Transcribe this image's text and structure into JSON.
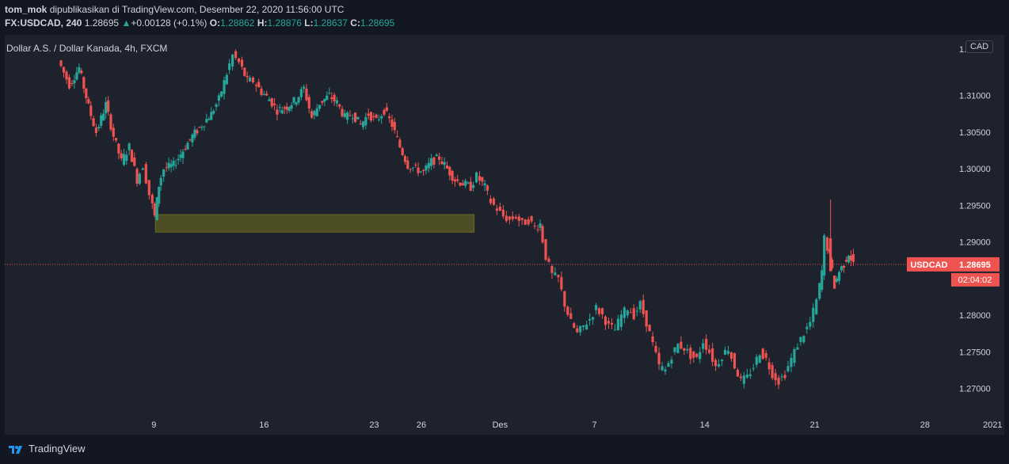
{
  "header": {
    "author": "tom_mok",
    "published_text": "dipublikasikan di TradingView.com, Desember 22, 2020 11:56:00 UTC",
    "symbol_interval": "FX:USDCAD, 240",
    "last_price": "1.28695",
    "change": "+0.00128 (+0.1%)",
    "o_label": "O:",
    "o_value": "1.28862",
    "h_label": "H:",
    "h_value": "1.28876",
    "l_label": "L:",
    "l_value": "1.28637",
    "c_label": "C:",
    "c_value": "1.28695"
  },
  "symbol_title": "Dollar A.S. / Dollar Kanada, 4h, FXCM",
  "currency_badge": "CAD",
  "price_axis": {
    "ticks": [
      "1.31000",
      "1.30500",
      "1.30000",
      "1.29500",
      "1.29000",
      "1.28000",
      "1.27500",
      "1.27000"
    ],
    "top_partial_label": "1.3"
  },
  "time_axis": {
    "ticks": [
      "9",
      "16",
      "23",
      "26",
      "Des",
      "7",
      "14",
      "21",
      "28",
      "2021"
    ]
  },
  "price_tags": {
    "symbol": "USDCAD",
    "last": "1.28695",
    "countdown": "02:04:02"
  },
  "footer": {
    "brand": "TradingView"
  },
  "colors": {
    "up": "#26a69a",
    "down": "#ef5350",
    "zone": "#4e4e24",
    "background": "#1e222d"
  },
  "chart_data": {
    "type": "candlestick",
    "symbol": "USDCAD",
    "interval": "4h",
    "ylim": [
      1.2666,
      1.3183
    ],
    "last_price": 1.28695,
    "support_zone": {
      "low": 1.29135,
      "high": 1.29375,
      "from_day": 9.1,
      "to_day": 29.35
    },
    "path_points": [
      [
        3.1,
        1.3148
      ],
      [
        3.8,
        1.3115
      ],
      [
        4.4,
        1.3138
      ],
      [
        5.0,
        1.3085
      ],
      [
        5.5,
        1.305
      ],
      [
        6.1,
        1.3088
      ],
      [
        6.6,
        1.3045
      ],
      [
        7.1,
        1.301
      ],
      [
        7.6,
        1.303
      ],
      [
        8.1,
        1.2985
      ],
      [
        8.5,
        1.3005
      ],
      [
        8.9,
        1.2965
      ],
      [
        9.2,
        1.2935
      ],
      [
        9.45,
        1.2978
      ],
      [
        9.8,
        1.3
      ],
      [
        10.4,
        1.3005
      ],
      [
        11.0,
        1.3025
      ],
      [
        11.6,
        1.3045
      ],
      [
        12.2,
        1.306
      ],
      [
        12.8,
        1.3075
      ],
      [
        13.3,
        1.3095
      ],
      [
        13.8,
        1.313
      ],
      [
        14.2,
        1.3155
      ],
      [
        14.6,
        1.3145
      ],
      [
        15.1,
        1.312
      ],
      [
        15.5,
        1.312
      ],
      [
        16.0,
        1.3105
      ],
      [
        16.5,
        1.3095
      ],
      [
        17.0,
        1.308
      ],
      [
        17.6,
        1.3085
      ],
      [
        18.2,
        1.3095
      ],
      [
        18.7,
        1.311
      ],
      [
        19.2,
        1.307
      ],
      [
        19.7,
        1.309
      ],
      [
        20.3,
        1.31
      ],
      [
        20.8,
        1.309
      ],
      [
        21.3,
        1.307
      ],
      [
        21.8,
        1.3075
      ],
      [
        22.3,
        1.306
      ],
      [
        22.8,
        1.3075
      ],
      [
        23.3,
        1.3065
      ],
      [
        23.8,
        1.308
      ],
      [
        24.3,
        1.306
      ],
      [
        24.8,
        1.303
      ],
      [
        25.3,
        1.3005
      ],
      [
        25.8,
        1.3
      ],
      [
        26.3,
        1.2995
      ],
      [
        26.8,
        1.301
      ],
      [
        27.3,
        1.3015
      ],
      [
        27.8,
        1.3
      ],
      [
        28.3,
        1.2985
      ],
      [
        28.8,
        1.298
      ],
      [
        29.3,
        1.2975
      ],
      [
        29.7,
        1.299
      ],
      [
        30.2,
        1.2975
      ],
      [
        30.6,
        1.2955
      ],
      [
        31.0,
        1.2945
      ],
      [
        31.4,
        1.2935
      ],
      [
        31.8,
        1.293
      ],
      [
        32.2,
        1.2935
      ],
      [
        32.6,
        1.2925
      ],
      [
        33.0,
        1.293
      ],
      [
        33.4,
        1.292
      ],
      [
        33.7,
        1.2925
      ],
      [
        34.1,
        1.288
      ],
      [
        34.5,
        1.2855
      ],
      [
        34.9,
        1.285
      ],
      [
        35.3,
        1.2815
      ],
      [
        35.7,
        1.279
      ],
      [
        36.1,
        1.2775
      ],
      [
        36.5,
        1.2785
      ],
      [
        36.9,
        1.2795
      ],
      [
        37.3,
        1.281
      ],
      [
        37.7,
        1.28
      ],
      [
        38.1,
        1.2785
      ],
      [
        38.5,
        1.278
      ],
      [
        38.9,
        1.28
      ],
      [
        39.3,
        1.281
      ],
      [
        39.7,
        1.28
      ],
      [
        40.1,
        1.2815
      ],
      [
        40.5,
        1.279
      ],
      [
        40.9,
        1.276
      ],
      [
        41.3,
        1.273
      ],
      [
        41.7,
        1.2725
      ],
      [
        42.1,
        1.2745
      ],
      [
        42.5,
        1.276
      ],
      [
        42.9,
        1.2755
      ],
      [
        43.3,
        1.2745
      ],
      [
        43.7,
        1.274
      ],
      [
        44.1,
        1.2765
      ],
      [
        44.5,
        1.275
      ],
      [
        44.9,
        1.273
      ],
      [
        45.3,
        1.2745
      ],
      [
        45.7,
        1.2755
      ],
      [
        46.1,
        1.273
      ],
      [
        46.5,
        1.271
      ],
      [
        46.9,
        1.2715
      ],
      [
        47.3,
        1.273
      ],
      [
        47.7,
        1.275
      ],
      [
        48.1,
        1.274
      ],
      [
        48.5,
        1.272
      ],
      [
        48.9,
        1.271
      ],
      [
        49.3,
        1.272
      ],
      [
        49.7,
        1.274
      ],
      [
        50.1,
        1.276
      ],
      [
        50.5,
        1.2775
      ],
      [
        50.9,
        1.279
      ],
      [
        51.3,
        1.282
      ],
      [
        51.6,
        1.286
      ],
      [
        51.8,
        1.2905
      ],
      [
        52.1,
        1.288
      ],
      [
        52.4,
        1.284
      ],
      [
        52.7,
        1.286
      ],
      [
        53.0,
        1.287
      ],
      [
        53.3,
        1.2885
      ],
      [
        53.6,
        1.287
      ]
    ]
  }
}
